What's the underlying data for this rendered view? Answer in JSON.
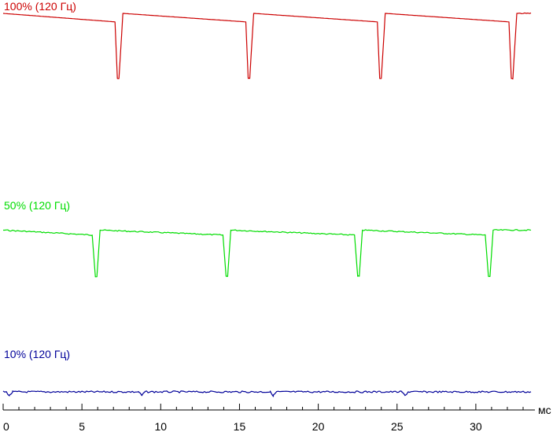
{
  "chart_data": {
    "type": "line",
    "xlabel": "мс",
    "xlim": [
      0,
      33.5
    ],
    "ylim": [
      0,
      100
    ],
    "grid": false,
    "x_ticks": [
      0,
      5,
      10,
      15,
      20,
      25,
      30
    ],
    "x_tick_labels": [
      "0",
      "5",
      "10",
      "15",
      "20",
      "25",
      "30"
    ],
    "x_minor_step": 1,
    "series": [
      {
        "name": "100% (120 Гц)",
        "color": "#cc0000",
        "period_ms": 8.33,
        "points": [
          [
            0.0,
            100
          ],
          [
            7.1,
            88
          ],
          [
            7.25,
            8
          ],
          [
            7.35,
            8
          ],
          [
            7.6,
            100
          ],
          [
            15.4,
            88
          ],
          [
            15.55,
            8
          ],
          [
            15.65,
            8
          ],
          [
            15.9,
            100
          ],
          [
            23.75,
            88
          ],
          [
            23.9,
            8
          ],
          [
            24.0,
            8
          ],
          [
            24.25,
            100
          ],
          [
            32.1,
            88
          ],
          [
            32.25,
            8
          ],
          [
            32.35,
            8
          ],
          [
            32.6,
            100
          ],
          [
            33.5,
            100
          ]
        ]
      },
      {
        "name": "50% (120 Гц)",
        "color": "#00dd00",
        "period_ms": 8.33,
        "points": [
          [
            0.0,
            56
          ],
          [
            5.65,
            53
          ],
          [
            5.85,
            28
          ],
          [
            5.95,
            28
          ],
          [
            6.15,
            56
          ],
          [
            13.95,
            53
          ],
          [
            14.15,
            28
          ],
          [
            14.25,
            28
          ],
          [
            14.45,
            56
          ],
          [
            22.3,
            53
          ],
          [
            22.5,
            28
          ],
          [
            22.6,
            28
          ],
          [
            22.8,
            56
          ],
          [
            30.6,
            53
          ],
          [
            30.8,
            28
          ],
          [
            30.9,
            28
          ],
          [
            31.1,
            56
          ],
          [
            33.5,
            56
          ]
        ]
      },
      {
        "name": "10% (120 Гц)",
        "color": "#000099",
        "period_ms": 8.33,
        "points": [
          [
            0.0,
            10
          ],
          [
            0.2,
            10
          ],
          [
            0.4,
            6
          ],
          [
            0.6,
            10
          ],
          [
            8.6,
            10
          ],
          [
            8.8,
            6
          ],
          [
            9.0,
            10
          ],
          [
            16.95,
            10
          ],
          [
            17.15,
            6
          ],
          [
            17.35,
            10
          ],
          [
            25.3,
            10
          ],
          [
            25.5,
            6
          ],
          [
            25.7,
            10
          ],
          [
            33.5,
            10
          ]
        ]
      }
    ]
  }
}
